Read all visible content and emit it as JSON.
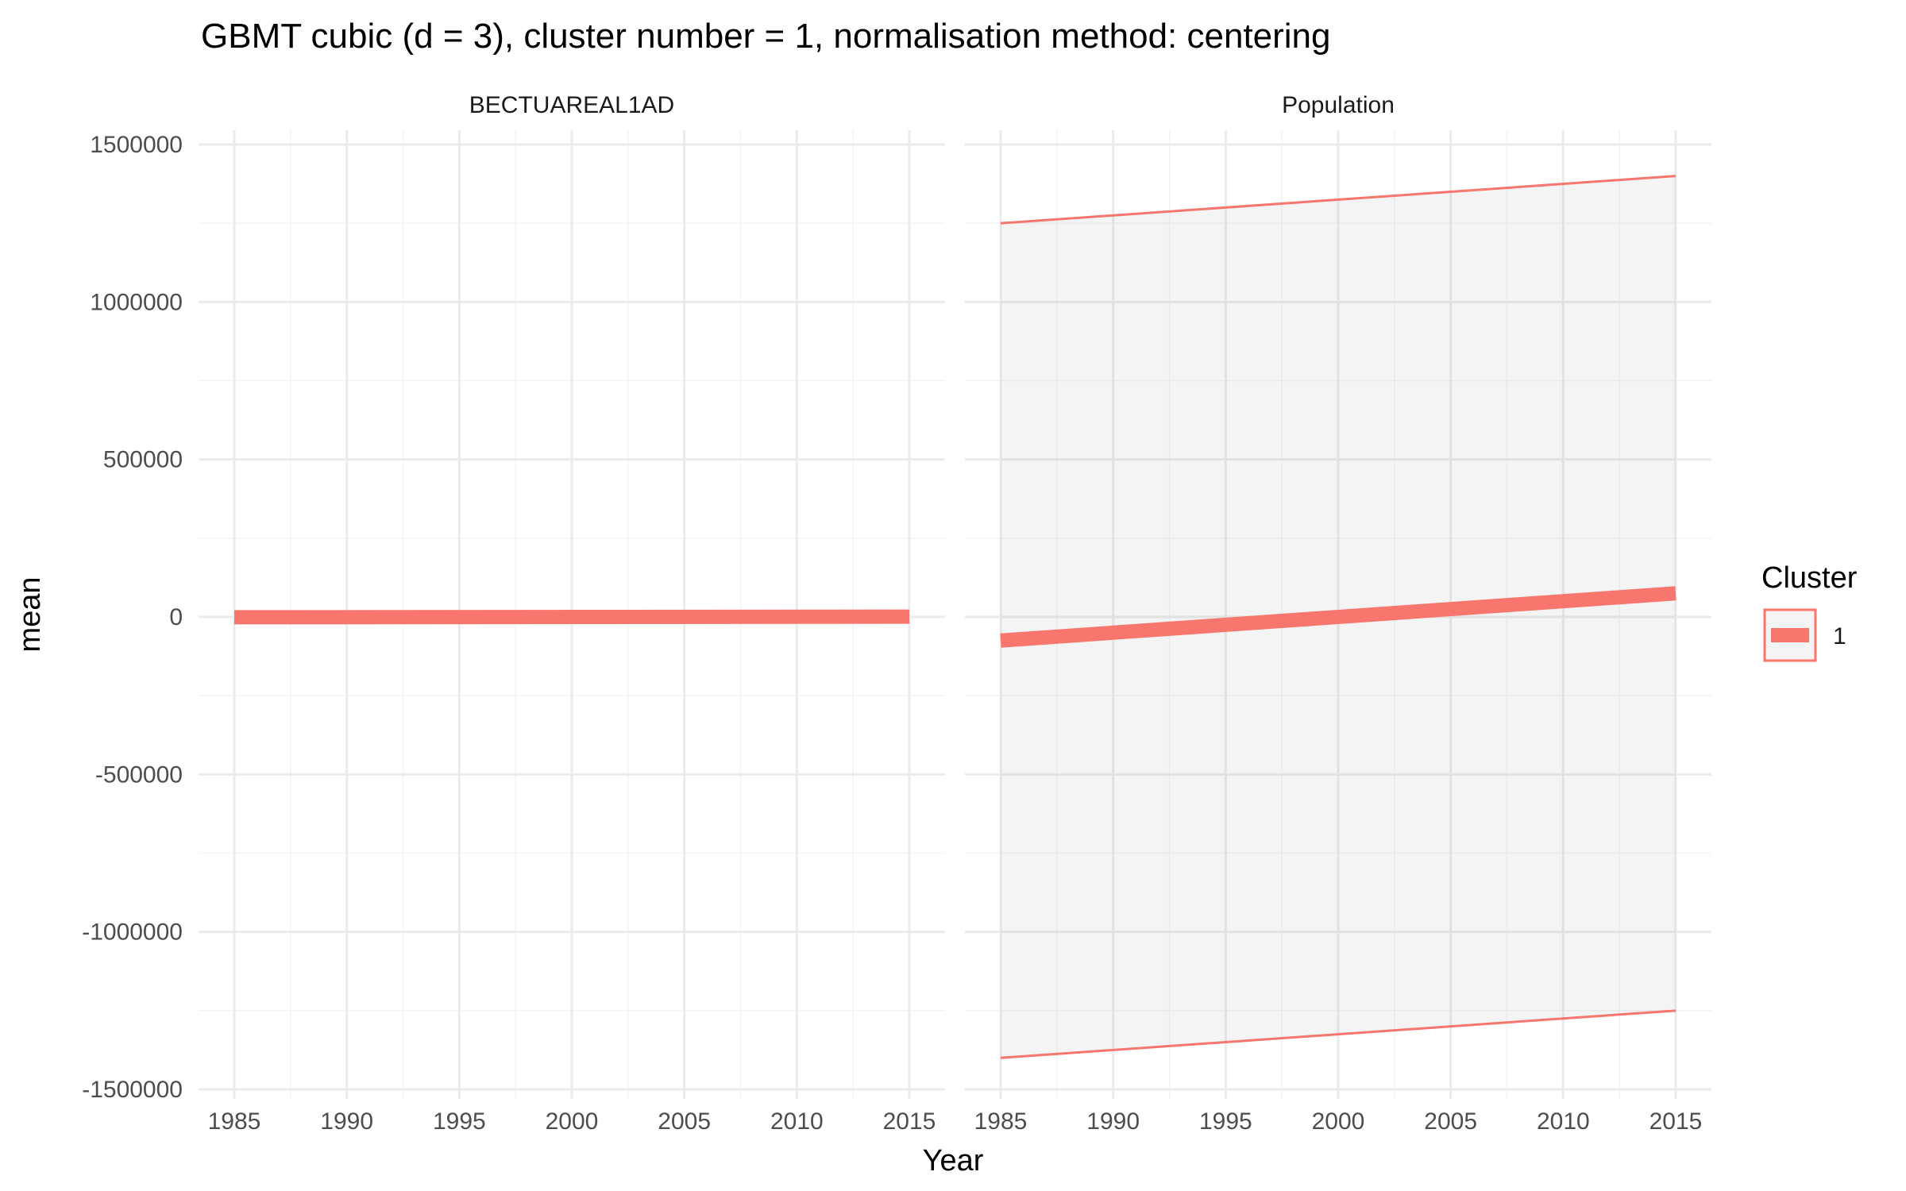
{
  "chart_data": {
    "type": "line",
    "title": "GBMT cubic (d = 3), cluster number = 1, normalisation method: centering",
    "xlabel": "Year",
    "ylabel": "mean",
    "xlim": [
      1985,
      2015
    ],
    "ylim": [
      -1500000,
      1500000
    ],
    "x_ticks": [
      1985,
      1990,
      1995,
      2000,
      2005,
      2010,
      2015
    ],
    "x_tick_labels": [
      "1985",
      "1990",
      "1995",
      "2000",
      "2005",
      "2010",
      "2015"
    ],
    "y_ticks": [
      -1500000,
      -1000000,
      -500000,
      0,
      500000,
      1000000,
      1500000
    ],
    "y_tick_labels": [
      "-1500000",
      "-1000000",
      "-500000",
      "0",
      "500000",
      "1000000",
      "1500000"
    ],
    "grid": true,
    "legend": {
      "title": "Cluster",
      "position": "right",
      "entries": [
        {
          "label": "1",
          "color": "#F8766D"
        }
      ]
    },
    "facets": [
      {
        "name": "BECTUAREAL1AD",
        "series": [
          {
            "cluster": "1",
            "color": "#F8766D",
            "x": [
              1985,
              2015
            ],
            "mean": [
              -1000,
              1000
            ],
            "lower": [
              -1000,
              1000
            ],
            "upper": [
              -1000,
              1000
            ]
          }
        ]
      },
      {
        "name": "Population",
        "series": [
          {
            "cluster": "1",
            "color": "#F8766D",
            "x": [
              1985,
              2015
            ],
            "mean": [
              -75000,
              75000
            ],
            "lower": [
              -1400000,
              -1250000
            ],
            "upper": [
              1250000,
              1400000
            ]
          }
        ]
      }
    ]
  }
}
